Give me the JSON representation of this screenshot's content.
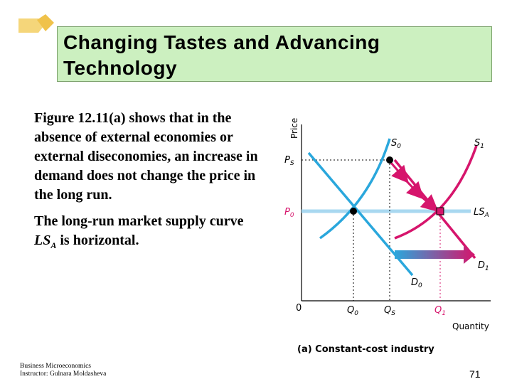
{
  "slide": {
    "title": "Changing Tastes and Advancing Technology",
    "paragraph1": "Figure 12.11(a) shows that in the absence of external economies or external diseconomies, an increase in demand does not change the price in the long run.",
    "paragraph2_pre": "The long-run market supply curve ",
    "paragraph2_ls": "LS",
    "paragraph2_sub": "A",
    "paragraph2_post": " is horizontal.",
    "footer_line1": "Business Microeconomics",
    "footer_line2": "Instructor: Gulnara Moldasheva",
    "page_number": "71"
  },
  "diagram": {
    "y_axis_label": "Price",
    "x_axis_label": "Quantity",
    "origin_label": "0",
    "caption": "(a) Constant-cost industry",
    "curves": {
      "s0": "S",
      "s0_sub": "0",
      "s1": "S",
      "s1_sub": "1",
      "ls": "LS",
      "ls_sub": "A",
      "d0": "D",
      "d0_sub": "0",
      "d1": "D",
      "d1_sub": "1"
    },
    "price_labels": {
      "ps": "P",
      "ps_sub": "S",
      "p0": "P",
      "p0_sub": "0"
    },
    "quantity_labels": {
      "q0": "Q",
      "q0_sub": "0",
      "qs": "Q",
      "qs_sub": "S",
      "q1": "Q",
      "q1_sub": "1"
    },
    "colors": {
      "demand": "#2aa7dc",
      "supply": "#d6156c",
      "long_run": "#a9d8f0",
      "accent": "#d6156c"
    }
  }
}
